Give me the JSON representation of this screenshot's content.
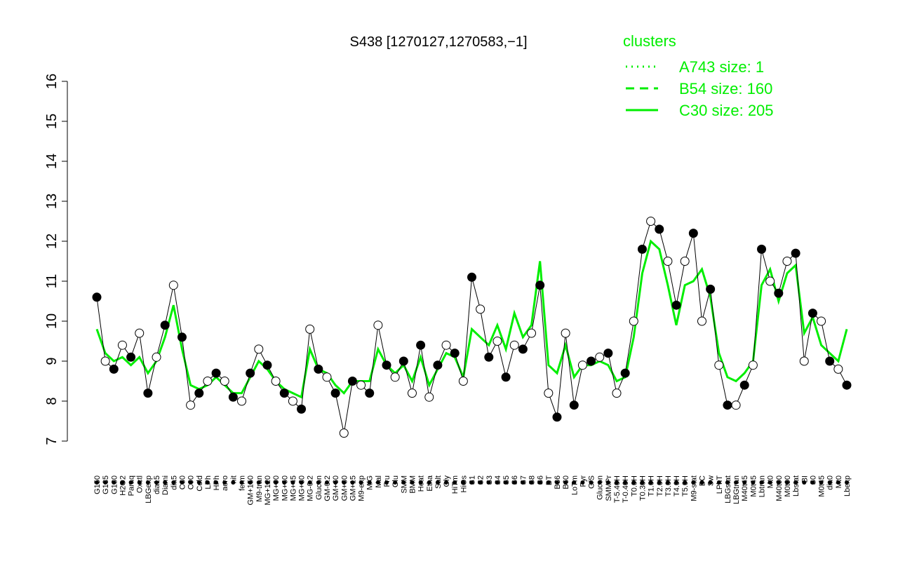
{
  "chart_data": {
    "type": "line",
    "title": "S438 [1270127,1270583,−1]",
    "legend_title": "clusters",
    "legend_color": "#00ee00",
    "point_line_color": "#000000",
    "ylim": [
      7,
      16
    ],
    "yticks": [
      7,
      8,
      9,
      10,
      11,
      12,
      13,
      14,
      15,
      16
    ],
    "categories": [
      "G150",
      "G135",
      "G180",
      "H2O2",
      "Paraq",
      "Oxctl",
      "LBGexp",
      "dia15",
      "Diami",
      "dia5",
      "C30",
      "C90",
      "Cold",
      "LPh",
      "HPh",
      "aero",
      "nit",
      "ferm",
      "GM+150",
      "M9-tran",
      "MG+120",
      "MG+90",
      "MG+60",
      "MG+45",
      "MG+30",
      "MG-0.2",
      "Glucon",
      "GM-0.2",
      "GM+60",
      "GM+30",
      "GM+15",
      "M9-exp",
      "M/G",
      "Mal",
      "Fru",
      "Glu",
      "SMM",
      "BMM",
      "Heat",
      "Etha",
      "Salt",
      "Gly",
      "HiTm",
      "HiOs",
      "S1",
      "S2",
      "S3",
      "S4",
      "S5",
      "S6",
      "S7",
      "S8",
      "S6",
      "BT",
      "B36",
      "B60",
      "LoTm",
      "Pyr",
      "G/S",
      "Glucon",
      "SMMPr",
      "T-5.40H",
      "T-0.40H",
      "T0.0H",
      "T0.30H",
      "T1.0H",
      "T2.0H",
      "T3.0H",
      "T4.0H",
      "T5.0H",
      "M9-stat",
      "BC",
      "Sw",
      "LPhT",
      "LBGstat",
      "LBGtran",
      "M40t45",
      "M0t45",
      "Lbtran",
      "Mt0",
      "M40t90",
      "M0t90",
      "Lbstat",
      "BI",
      "S0",
      "M0t45",
      "dia0",
      "Mt0",
      "Lbexp"
    ],
    "values": [
      10.6,
      9.0,
      8.8,
      9.4,
      9.1,
      9.7,
      8.2,
      9.1,
      9.9,
      10.9,
      9.6,
      7.9,
      8.2,
      8.5,
      8.7,
      8.5,
      8.1,
      8.0,
      8.7,
      9.3,
      8.9,
      8.5,
      8.2,
      8.0,
      7.8,
      9.8,
      8.8,
      8.6,
      8.2,
      7.2,
      8.5,
      8.4,
      8.2,
      9.9,
      8.9,
      8.6,
      9.0,
      8.2,
      9.4,
      8.1,
      8.9,
      9.4,
      9.2,
      8.5,
      11.1,
      10.3,
      9.1,
      9.5,
      8.6,
      9.4,
      9.3,
      9.7,
      10.9,
      8.2,
      7.6,
      9.7,
      7.9,
      8.9,
      9.0,
      9.1,
      9.2,
      8.2,
      8.7,
      10.0,
      11.8,
      12.5,
      12.3,
      11.5,
      10.4,
      11.5,
      12.2,
      10.0,
      10.8,
      8.9,
      7.9,
      7.9,
      8.4,
      8.9,
      11.8,
      11.0,
      10.7,
      11.5,
      11.7,
      9.0,
      10.2,
      10.0,
      9.0,
      8.8,
      8.4
    ],
    "series": [
      {
        "name": "A743 size: 1",
        "dash": "dotted"
      },
      {
        "name": "B54 size: 160",
        "dash": "dashed"
      },
      {
        "name": "C30 size: 205",
        "dash": "solid",
        "values": [
          9.8,
          9.2,
          9.0,
          9.1,
          8.9,
          9.1,
          8.7,
          9.0,
          9.6,
          10.4,
          9.3,
          8.4,
          8.3,
          8.4,
          8.6,
          8.4,
          8.2,
          8.2,
          8.6,
          9.0,
          8.8,
          8.5,
          8.3,
          8.2,
          8.1,
          9.3,
          8.8,
          8.7,
          8.4,
          8.2,
          8.5,
          8.5,
          8.5,
          9.3,
          8.9,
          8.7,
          8.9,
          8.5,
          9.1,
          8.4,
          8.8,
          9.2,
          9.1,
          8.6,
          9.8,
          9.6,
          9.4,
          9.9,
          9.3,
          10.2,
          9.6,
          9.9,
          11.5,
          8.9,
          8.7,
          9.4,
          8.6,
          8.9,
          8.9,
          9.0,
          8.9,
          8.5,
          8.6,
          9.6,
          11.2,
          12.0,
          11.8,
          10.9,
          9.9,
          10.9,
          11.0,
          11.3,
          10.6,
          9.2,
          8.6,
          8.5,
          8.7,
          9.0,
          10.9,
          11.3,
          10.5,
          11.2,
          11.4,
          9.7,
          10.1,
          9.4,
          9.2,
          9.0,
          9.8
        ]
      }
    ]
  }
}
